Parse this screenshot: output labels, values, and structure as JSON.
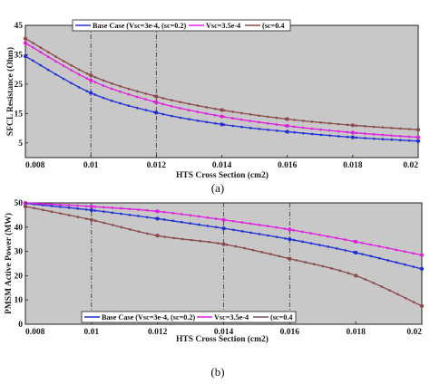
{
  "header_fragment": "figure header, partially cut off",
  "chart_data": [
    {
      "type": "line",
      "caption": "(a)",
      "xlabel": "HTS Cross Section (cm2)",
      "ylabel": "SFCL Resistance (Ohm)",
      "xlim": [
        0.008,
        0.02
      ],
      "ylim": [
        0,
        45
      ],
      "x_ticks": [
        "0.008",
        "0.01",
        "0.012",
        "0.014",
        "0.016",
        "0.018",
        "0.02"
      ],
      "y_ticks": [
        "5",
        "15",
        "25",
        "35",
        "45"
      ],
      "y_tick_values": [
        5,
        15,
        25,
        35,
        45
      ],
      "grid": "vertical dash-dot lines at x = 0.01, 0.012",
      "background": "#c8c8c8",
      "legend_position": "top",
      "x": [
        0.008,
        0.01,
        0.012,
        0.014,
        0.016,
        0.018,
        0.02
      ],
      "series": [
        {
          "name": "Base Case (Vsc=3e-4, (sc=0.2)",
          "color": "#1f2fd6",
          "marker": "*",
          "values": [
            34.5,
            22.0,
            15.3,
            11.3,
            8.8,
            6.9,
            5.6
          ]
        },
        {
          "name": "Vsc=3.5e-4",
          "color": "#e01ee0",
          "marker": "*",
          "values": [
            39.0,
            26.3,
            18.8,
            14.0,
            10.8,
            8.5,
            6.9
          ]
        },
        {
          "name": "(sc=0.4",
          "color": "#8b4a4a",
          "marker": "*",
          "values": [
            40.5,
            28.0,
            20.8,
            16.2,
            13.1,
            11.0,
            9.5
          ]
        }
      ]
    },
    {
      "type": "line",
      "caption": "(b)",
      "xlabel": "HTS Cross Section (cm2)",
      "ylabel": "PMSM Active Power (MW)",
      "xlim": [
        0.008,
        0.02
      ],
      "ylim": [
        0,
        50
      ],
      "x_ticks": [
        "0.008",
        "0.01",
        "0.012",
        "0.014",
        "0.016",
        "0.018",
        "0.02"
      ],
      "y_ticks": [
        "0",
        "10",
        "20",
        "30",
        "40",
        "50"
      ],
      "y_tick_values": [
        0,
        10,
        20,
        30,
        40,
        50
      ],
      "grid": "vertical dash-dot lines at x = 0.01, 0.014, 0.016",
      "background": "#c8c8c8",
      "legend_position": "bottom-left",
      "x": [
        0.008,
        0.01,
        0.012,
        0.014,
        0.016,
        0.018,
        0.02
      ],
      "series": [
        {
          "name": "Base Case (Vsc=3e-4, (sc=0.2)",
          "color": "#1f2fd6",
          "marker": "*",
          "values": [
            49.8,
            47.0,
            43.5,
            39.5,
            35.0,
            29.5,
            22.8
          ]
        },
        {
          "name": "Vsc=3.5e-4",
          "color": "#e01ee0",
          "marker": "*",
          "values": [
            50.0,
            48.5,
            46.5,
            43.0,
            39.0,
            34.0,
            28.5
          ]
        },
        {
          "name": "(sc=0.4",
          "color": "#8b4a4a",
          "marker": "*",
          "values": [
            48.5,
            43.0,
            36.5,
            33.0,
            27.0,
            20.0,
            7.5
          ]
        }
      ]
    }
  ]
}
